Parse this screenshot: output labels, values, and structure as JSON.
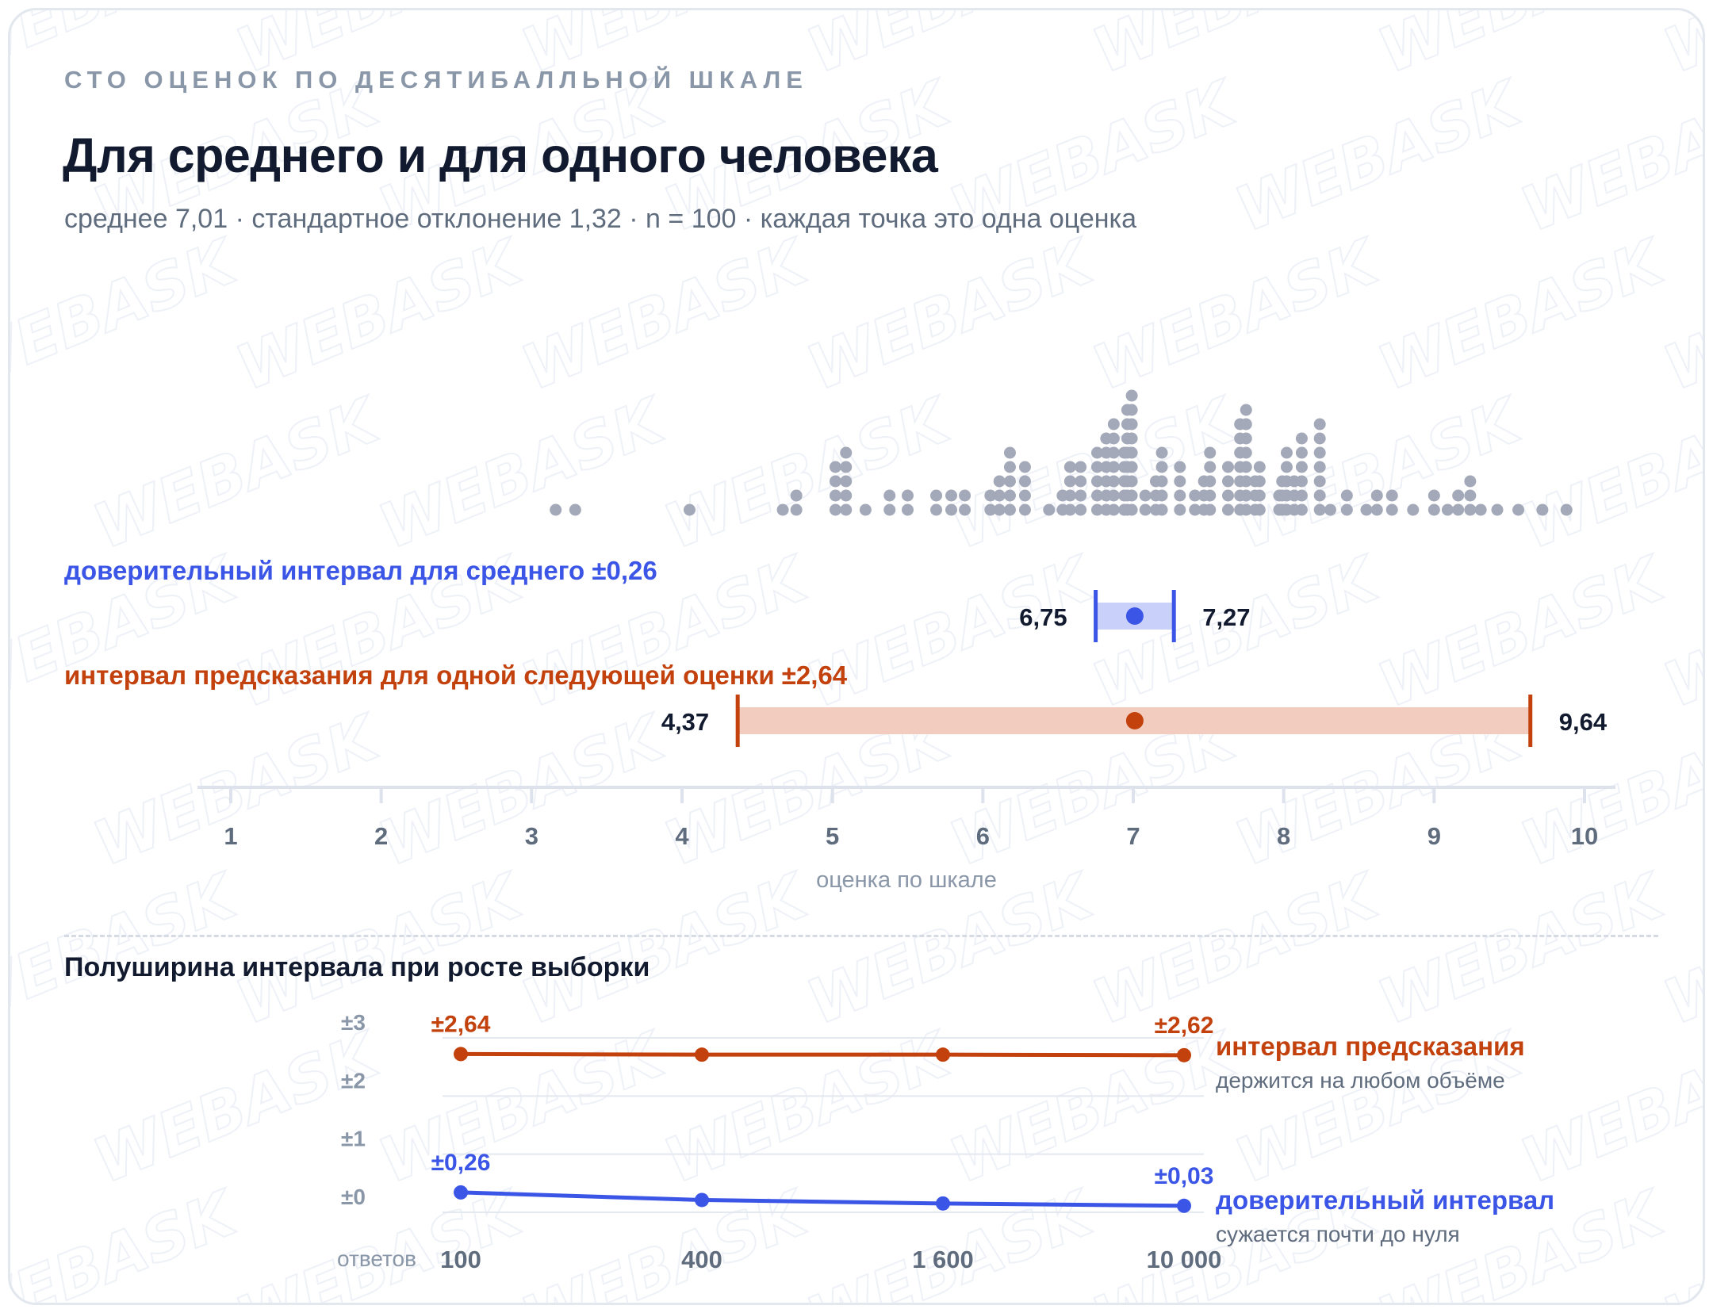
{
  "header": {
    "overline": "СТО ОЦЕНОК ПО ДЕСЯТИБАЛЛЬНОЙ ШКАЛЕ",
    "title": "Для среднего и для одного человека",
    "subtitle": "среднее 7,01 · стандартное отклонение 1,32 · n = 100 · каждая точка это одна оценка"
  },
  "watermark": "WEBASK",
  "colors": {
    "dot": "#a3a9b8",
    "ci": "#3b55e6",
    "ci_fill": "#c9d0fa",
    "pi": "#c2410c",
    "pi_fill": "#f2cdbf",
    "axis": "#dde2ec",
    "axis_text": "#5f6c7e",
    "grid": "#e4e8ef"
  },
  "chart_data": [
    {
      "type": "scatter",
      "subtype": "dot-plot with intervals",
      "xlabel": "оценка по шкале",
      "xlim": [
        1,
        10
      ],
      "x_ticks": [
        "1",
        "2",
        "3",
        "4",
        "5",
        "6",
        "7",
        "8",
        "9",
        "10"
      ],
      "mean": 7.01,
      "mean_label": "7,01",
      "dots": [
        {
          "x": 3.16,
          "n": 1
        },
        {
          "x": 3.29,
          "n": 1
        },
        {
          "x": 4.05,
          "n": 1
        },
        {
          "x": 4.67,
          "n": 1
        },
        {
          "x": 4.76,
          "n": 2
        },
        {
          "x": 5.02,
          "n": 4
        },
        {
          "x": 5.09,
          "n": 5
        },
        {
          "x": 5.22,
          "n": 1
        },
        {
          "x": 5.38,
          "n": 2
        },
        {
          "x": 5.5,
          "n": 2
        },
        {
          "x": 5.69,
          "n": 2
        },
        {
          "x": 5.79,
          "n": 2
        },
        {
          "x": 5.88,
          "n": 2
        },
        {
          "x": 6.05,
          "n": 2
        },
        {
          "x": 6.11,
          "n": 3
        },
        {
          "x": 6.18,
          "n": 5
        },
        {
          "x": 6.28,
          "n": 4
        },
        {
          "x": 6.44,
          "n": 1
        },
        {
          "x": 6.53,
          "n": 2
        },
        {
          "x": 6.58,
          "n": 4
        },
        {
          "x": 6.65,
          "n": 4
        },
        {
          "x": 6.76,
          "n": 5
        },
        {
          "x": 6.82,
          "n": 6
        },
        {
          "x": 6.87,
          "n": 7
        },
        {
          "x": 6.94,
          "n": 5
        },
        {
          "x": 6.96,
          "n": 8
        },
        {
          "x": 6.99,
          "n": 9
        },
        {
          "x": 7.08,
          "n": 2
        },
        {
          "x": 7.15,
          "n": 3
        },
        {
          "x": 7.19,
          "n": 5
        },
        {
          "x": 7.31,
          "n": 4
        },
        {
          "x": 7.41,
          "n": 2
        },
        {
          "x": 7.47,
          "n": 3
        },
        {
          "x": 7.51,
          "n": 5
        },
        {
          "x": 7.63,
          "n": 4
        },
        {
          "x": 7.71,
          "n": 7
        },
        {
          "x": 7.75,
          "n": 8
        },
        {
          "x": 7.81,
          "n": 3
        },
        {
          "x": 7.84,
          "n": 4
        },
        {
          "x": 7.97,
          "n": 2
        },
        {
          "x": 7.99,
          "n": 3
        },
        {
          "x": 8.02,
          "n": 5
        },
        {
          "x": 8.07,
          "n": 3
        },
        {
          "x": 8.12,
          "n": 6
        },
        {
          "x": 8.24,
          "n": 7
        },
        {
          "x": 8.31,
          "n": 1
        },
        {
          "x": 8.42,
          "n": 2
        },
        {
          "x": 8.55,
          "n": 1
        },
        {
          "x": 8.62,
          "n": 2
        },
        {
          "x": 8.72,
          "n": 2
        },
        {
          "x": 8.86,
          "n": 1
        },
        {
          "x": 9.0,
          "n": 2
        },
        {
          "x": 9.09,
          "n": 1
        },
        {
          "x": 9.16,
          "n": 2
        },
        {
          "x": 9.24,
          "n": 3
        },
        {
          "x": 9.31,
          "n": 1
        },
        {
          "x": 9.42,
          "n": 1
        },
        {
          "x": 9.56,
          "n": 1
        },
        {
          "x": 9.72,
          "n": 1
        },
        {
          "x": 9.88,
          "n": 1
        }
      ],
      "confidence_interval": {
        "label": "доверительный интервал для среднего ±0,26",
        "low": 6.75,
        "high": 7.27,
        "low_label": "6,75",
        "high_label": "7,27"
      },
      "prediction_interval": {
        "label": "интервал предсказания для одной следующей оценки ±2,64",
        "low": 4.37,
        "high": 9.64,
        "low_label": "4,37",
        "high_label": "9,64"
      }
    },
    {
      "type": "line",
      "title": "Полуширина интервала при росте выборки",
      "x_label": "ответов",
      "categories": [
        "100",
        "400",
        "1 600",
        "10 000"
      ],
      "ylim": [
        0,
        3
      ],
      "y_ticks": [
        "±0",
        "±1",
        "±2",
        "±3"
      ],
      "series": [
        {
          "name": "интервал предсказания",
          "note": "держится на любом объёме",
          "values": [
            2.64,
            2.63,
            2.63,
            2.62
          ],
          "end_labels": [
            "±2,64",
            "±2,62"
          ]
        },
        {
          "name": "доверительный интервал",
          "note": "сужается почти до нуля",
          "values": [
            0.26,
            0.13,
            0.07,
            0.03
          ],
          "end_labels": [
            "±0,26",
            "±0,03"
          ]
        }
      ]
    }
  ]
}
